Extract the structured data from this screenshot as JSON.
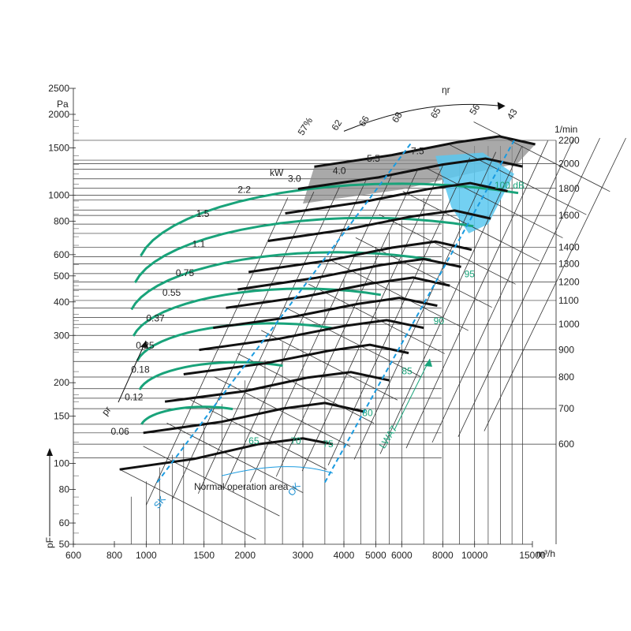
{
  "chart_data": {
    "type": "line",
    "title": "",
    "xlabel": "m³/h",
    "ylabel_top": "Pa",
    "ylabel_bottom": "pF",
    "x_scale": "log",
    "y_scale": "log",
    "xlim": [
      600,
      15000
    ],
    "ylim": [
      50,
      2500
    ],
    "x_ticks": [
      600,
      800,
      1000,
      1500,
      2000,
      3000,
      4000,
      5000,
      6000,
      8000,
      10000,
      15000
    ],
    "x_tick_labels": [
      "600",
      "800",
      "1000",
      "1500",
      "2000",
      "3000",
      "4000",
      "5000",
      "6000",
      "8000",
      "10000",
      "15000"
    ],
    "x_unit": "m³/h",
    "y_ticks": [
      50,
      60,
      80,
      100,
      150,
      200,
      300,
      400,
      500,
      600,
      800,
      1000,
      1500,
      2000,
      2500
    ],
    "y_tick_labels": [
      "50",
      "60",
      "80",
      "100",
      "150",
      "200",
      "300",
      "400",
      "500",
      "600",
      "800",
      "1000",
      "1500",
      "2000",
      "2500"
    ],
    "y_unit": "Pa",
    "rpm_axis": {
      "unit": "1/min",
      "labels": [
        "2200",
        "2000",
        "1800",
        "1600",
        "1400",
        "1300",
        "1200",
        "1100",
        "1000",
        "900",
        "800",
        "700",
        "600"
      ]
    },
    "fan_curves": [
      {
        "rpm": 600,
        "x": [
          830,
          1400,
          2200,
          3000,
          3700
        ],
        "y": [
          95,
          104,
          118,
          124,
          118
        ]
      },
      {
        "rpm": 700,
        "x": [
          980,
          1700,
          2600,
          3500,
          4600
        ],
        "y": [
          130,
          143,
          160,
          168,
          156
        ]
      },
      {
        "rpm": 800,
        "x": [
          1140,
          2000,
          3100,
          4200,
          5500
        ],
        "y": [
          170,
          186,
          209,
          219,
          204
        ]
      },
      {
        "rpm": 900,
        "x": [
          1300,
          2300,
          3600,
          4800,
          6300
        ],
        "y": [
          215,
          236,
          263,
          277,
          258
        ]
      },
      {
        "rpm": 1000,
        "x": [
          1450,
          2550,
          4000,
          5400,
          7000
        ],
        "y": [
          265,
          292,
          325,
          342,
          320
        ]
      },
      {
        "rpm": 1100,
        "x": [
          1600,
          2800,
          4400,
          5900,
          7700
        ],
        "y": [
          320,
          352,
          393,
          414,
          387
        ]
      },
      {
        "rpm": 1200,
        "x": [
          1750,
          3050,
          4800,
          6500,
          8400
        ],
        "y": [
          380,
          419,
          468,
          493,
          460
        ]
      },
      {
        "rpm": 1300,
        "x": [
          1900,
          3300,
          5200,
          7000,
          9100
        ],
        "y": [
          445,
          492,
          549,
          578,
          540
        ]
      },
      {
        "rpm": 1400,
        "x": [
          2050,
          3600,
          5600,
          7600,
          9800
        ],
        "y": [
          517,
          571,
          637,
          671,
          626
        ]
      },
      {
        "rpm": 1600,
        "x": [
          2350,
          4100,
          6400,
          8700,
          11200
        ],
        "y": [
          675,
          746,
          832,
          876,
          818
        ]
      },
      {
        "rpm": 1800,
        "x": [
          2650,
          4600,
          7200,
          9700,
          12600
        ],
        "y": [
          855,
          944,
          1053,
          1109,
          1035
        ]
      },
      {
        "rpm": 2000,
        "x": [
          2900,
          5100,
          8000,
          10800,
          14000
        ],
        "y": [
          1055,
          1165,
          1300,
          1369,
          1278
        ]
      },
      {
        "rpm": 2200,
        "x": [
          3250,
          5600,
          8800,
          11900,
          15300
        ],
        "y": [
          1277,
          1410,
          1573,
          1656,
          1546
        ]
      }
    ],
    "motor_power_labels": [
      "0.06",
      "0.12",
      "0.18",
      "0.25",
      "0.37",
      "0.55",
      "0.75",
      "1.1",
      "1.5",
      "2.2",
      "3.0",
      "4.0",
      "5.5",
      "7.5"
    ],
    "power_unit": "kW",
    "efficiency_labels": [
      "57%",
      "62",
      "66",
      "68",
      "65",
      "56",
      "43"
    ],
    "efficiency_symbol": "ηr",
    "noise_labels": [
      "65",
      "70",
      "75",
      "80",
      "85",
      "90",
      "95",
      "100 dB"
    ],
    "noise_axis_label": "LWA7",
    "pressure_axis_label": "pr",
    "annotations": {
      "sk": "SK",
      "ok": "OK",
      "normal_area": "Normal operation area"
    },
    "colors": {
      "curve": "#111111",
      "noise": "#19a37a",
      "dashed": "#1a9be0",
      "grey_zone": "#8c8c8c",
      "blue_zone": "#5ac8f0"
    }
  }
}
